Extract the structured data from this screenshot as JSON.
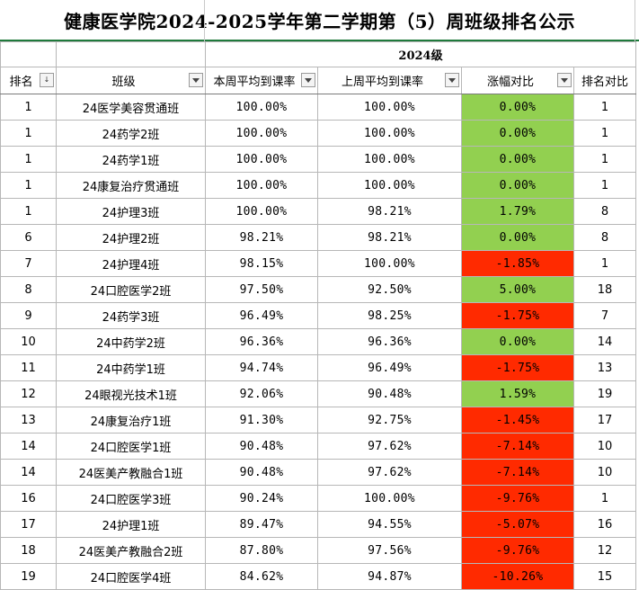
{
  "title": "健康医学院2024-2025学年第二学期第（5）周班级排名公示",
  "year_header": "2024级",
  "colors": {
    "increase": "#92d050",
    "decrease": "#ff2a00",
    "title_border": "#1f7a3c"
  },
  "columns": [
    {
      "key": "rank",
      "label": "排名",
      "icon": "sort-filter-icon"
    },
    {
      "key": "class",
      "label": "班级",
      "icon": "filter-dropdown-icon"
    },
    {
      "key": "this_week",
      "label": "本周平均到课率",
      "icon": "filter-dropdown-icon"
    },
    {
      "key": "last_week",
      "label": "上周平均到课率",
      "icon": "filter-dropdown-icon"
    },
    {
      "key": "change",
      "label": "涨幅对比",
      "icon": "filter-dropdown-icon"
    },
    {
      "key": "prev_rank",
      "label": "排名对比",
      "icon": ""
    }
  ],
  "rows": [
    {
      "rank": "1",
      "class": "24医学美容贯通班",
      "this_week": "100.00%",
      "last_week": "100.00%",
      "change": "0.00%",
      "trend": "pos",
      "prev_rank": "1"
    },
    {
      "rank": "1",
      "class": "24药学2班",
      "this_week": "100.00%",
      "last_week": "100.00%",
      "change": "0.00%",
      "trend": "pos",
      "prev_rank": "1"
    },
    {
      "rank": "1",
      "class": "24药学1班",
      "this_week": "100.00%",
      "last_week": "100.00%",
      "change": "0.00%",
      "trend": "pos",
      "prev_rank": "1"
    },
    {
      "rank": "1",
      "class": "24康复治疗贯通班",
      "this_week": "100.00%",
      "last_week": "100.00%",
      "change": "0.00%",
      "trend": "pos",
      "prev_rank": "1"
    },
    {
      "rank": "1",
      "class": "24护理3班",
      "this_week": "100.00%",
      "last_week": "98.21%",
      "change": "1.79%",
      "trend": "pos",
      "prev_rank": "8"
    },
    {
      "rank": "6",
      "class": "24护理2班",
      "this_week": "98.21%",
      "last_week": "98.21%",
      "change": "0.00%",
      "trend": "pos",
      "prev_rank": "8"
    },
    {
      "rank": "7",
      "class": "24护理4班",
      "this_week": "98.15%",
      "last_week": "100.00%",
      "change": "-1.85%",
      "trend": "neg",
      "prev_rank": "1"
    },
    {
      "rank": "8",
      "class": "24口腔医学2班",
      "this_week": "97.50%",
      "last_week": "92.50%",
      "change": "5.00%",
      "trend": "pos",
      "prev_rank": "18"
    },
    {
      "rank": "9",
      "class": "24药学3班",
      "this_week": "96.49%",
      "last_week": "98.25%",
      "change": "-1.75%",
      "trend": "neg",
      "prev_rank": "7"
    },
    {
      "rank": "10",
      "class": "24中药学2班",
      "this_week": "96.36%",
      "last_week": "96.36%",
      "change": "0.00%",
      "trend": "pos",
      "prev_rank": "14"
    },
    {
      "rank": "11",
      "class": "24中药学1班",
      "this_week": "94.74%",
      "last_week": "96.49%",
      "change": "-1.75%",
      "trend": "neg",
      "prev_rank": "13"
    },
    {
      "rank": "12",
      "class": "24眼视光技术1班",
      "this_week": "92.06%",
      "last_week": "90.48%",
      "change": "1.59%",
      "trend": "pos",
      "prev_rank": "19"
    },
    {
      "rank": "13",
      "class": "24康复治疗1班",
      "this_week": "91.30%",
      "last_week": "92.75%",
      "change": "-1.45%",
      "trend": "neg",
      "prev_rank": "17"
    },
    {
      "rank": "14",
      "class": "24口腔医学1班",
      "this_week": "90.48%",
      "last_week": "97.62%",
      "change": "-7.14%",
      "trend": "neg",
      "prev_rank": "10"
    },
    {
      "rank": "14",
      "class": "24医美产教融合1班",
      "this_week": "90.48%",
      "last_week": "97.62%",
      "change": "-7.14%",
      "trend": "neg",
      "prev_rank": "10"
    },
    {
      "rank": "16",
      "class": "24口腔医学3班",
      "this_week": "90.24%",
      "last_week": "100.00%",
      "change": "-9.76%",
      "trend": "neg",
      "prev_rank": "1"
    },
    {
      "rank": "17",
      "class": "24护理1班",
      "this_week": "89.47%",
      "last_week": "94.55%",
      "change": "-5.07%",
      "trend": "neg",
      "prev_rank": "16"
    },
    {
      "rank": "18",
      "class": "24医美产教融合2班",
      "this_week": "87.80%",
      "last_week": "97.56%",
      "change": "-9.76%",
      "trend": "neg",
      "prev_rank": "12"
    },
    {
      "rank": "19",
      "class": "24口腔医学4班",
      "this_week": "84.62%",
      "last_week": "94.87%",
      "change": "-10.26%",
      "trend": "neg",
      "prev_rank": "15"
    }
  ]
}
